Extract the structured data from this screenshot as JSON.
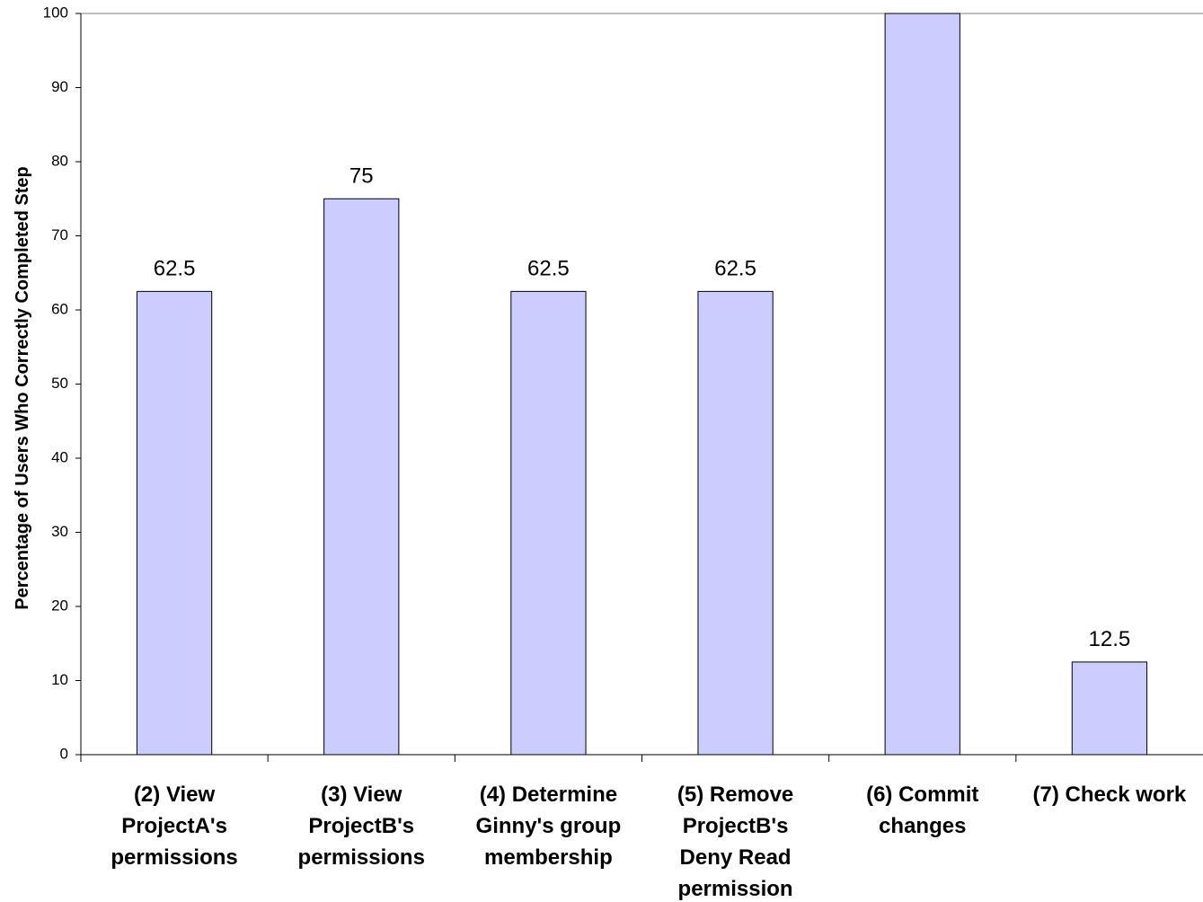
{
  "chart_data": {
    "type": "bar",
    "y_label": "Percentage of Users Who Correctly Completed Step",
    "categories": [
      "(2) View\nProjectA's\npermissions",
      "(3) View\nProjectB's\npermissions",
      "(4) Determine\nGinny's group\nmembership",
      "(5) Remove\nProjectB's\nDeny Read\npermission",
      "(6) Commit\nchanges",
      "(7) Check work"
    ],
    "values": [
      62.5,
      75,
      62.5,
      62.5,
      100,
      12.5
    ],
    "value_labels": [
      "62.5",
      "75",
      "62.5",
      "62.5",
      null,
      "12.5"
    ],
    "color": "#ccccff",
    "ylim": [
      0,
      100
    ],
    "yticks": [
      0,
      10,
      20,
      30,
      40,
      50,
      60,
      70,
      80,
      90,
      100
    ],
    "grid": false
  }
}
